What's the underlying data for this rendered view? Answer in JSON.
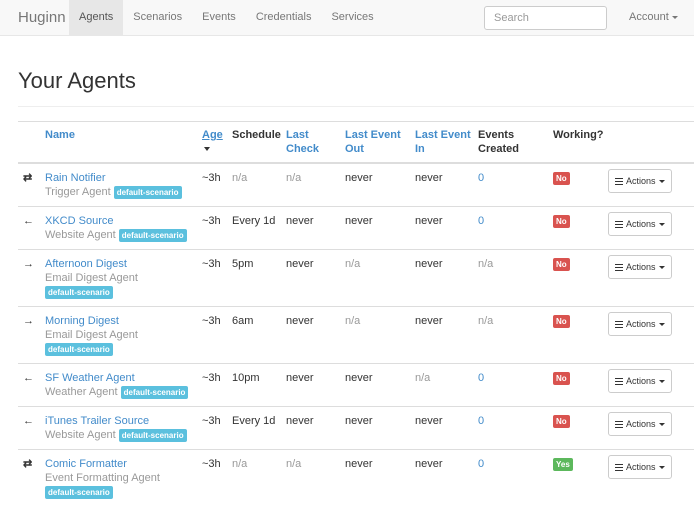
{
  "navbar": {
    "brand": "Huginn",
    "links": [
      "Agents",
      "Scenarios",
      "Events",
      "Credentials",
      "Services"
    ],
    "search_placeholder": "Search",
    "account": "Account"
  },
  "heading": "Your Agents",
  "table": {
    "headers": [
      "Name",
      "Age",
      "Schedule",
      "Last Check",
      "Last Event Out",
      "Last Event In",
      "Events Created",
      "Working?"
    ],
    "rows": [
      {
        "icon": "⇄",
        "name": "Rain Notifier",
        "type": "Trigger Agent",
        "scenario": "default-scenario",
        "age": "~3h",
        "schedule": "n/a",
        "last_check": "n/a",
        "last_event_out": "never",
        "last_event_in": "never",
        "events_created": 0,
        "working": "No",
        "actions": "Actions"
      },
      {
        "icon": "←",
        "name": "XKCD Source",
        "type": "Website Agent",
        "scenario": "default-scenario",
        "age": "~3h",
        "schedule": "Every 1d",
        "last_check": "never",
        "last_event_out": "never",
        "last_event_in": "never",
        "events_created": 0,
        "working": "No",
        "actions": "Actions"
      },
      {
        "icon": "→",
        "name": "Afternoon Digest",
        "type": "Email Digest Agent",
        "scenario": "default-scenario",
        "age": "~3h",
        "schedule": "5pm",
        "last_check": "never",
        "last_event_out": "n/a",
        "last_event_in": "never",
        "events_created": "n/a",
        "working": "No",
        "actions": "Actions"
      },
      {
        "icon": "→",
        "name": "Morning Digest",
        "type": "Email Digest Agent",
        "scenario": "default-scenario",
        "age": "~3h",
        "schedule": "6am",
        "last_check": "never",
        "last_event_out": "n/a",
        "last_event_in": "never",
        "events_created": "n/a",
        "working": "No",
        "actions": "Actions"
      },
      {
        "icon": "←",
        "name": "SF Weather Agent",
        "type": "Weather Agent",
        "scenario": "default-scenario",
        "age": "~3h",
        "schedule": "10pm",
        "last_check": "never",
        "last_event_out": "never",
        "last_event_in": "n/a",
        "events_created": 0,
        "working": "No",
        "actions": "Actions"
      },
      {
        "icon": "←",
        "name": "iTunes Trailer Source",
        "type": "Website Agent",
        "scenario": "default-scenario",
        "age": "~3h",
        "schedule": "Every 1d",
        "last_check": "never",
        "last_event_out": "never",
        "last_event_in": "never",
        "events_created": 0,
        "working": "No",
        "actions": "Actions"
      },
      {
        "icon": "⇄",
        "name": "Comic Formatter",
        "type": "Event Formatting Agent",
        "scenario": "default-scenario",
        "age": "~3h",
        "schedule": "n/a",
        "last_check": "n/a",
        "last_event_out": "never",
        "last_event_in": "never",
        "events_created": 0,
        "working": "Yes",
        "actions": "Actions"
      }
    ]
  }
}
